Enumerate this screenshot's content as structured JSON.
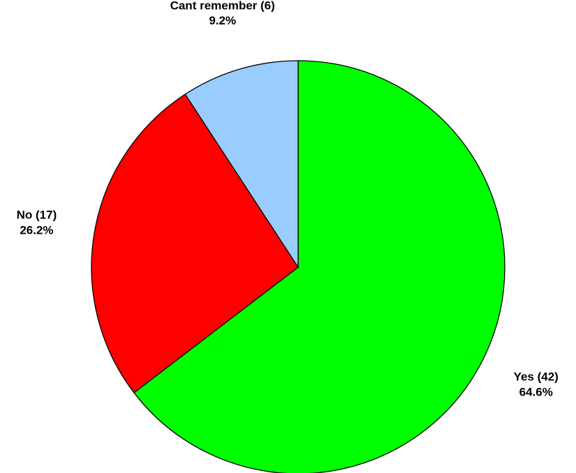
{
  "chart_data": {
    "type": "pie",
    "categories": [
      "Yes (42)",
      "No (17)",
      "Cant remember (6)"
    ],
    "values": [
      64.6,
      26.2,
      9.2
    ],
    "value_labels": [
      "64.6%",
      "26.2%",
      "9.2%"
    ],
    "colors": [
      "#00ff00",
      "#ff0000",
      "#99ccff"
    ]
  }
}
